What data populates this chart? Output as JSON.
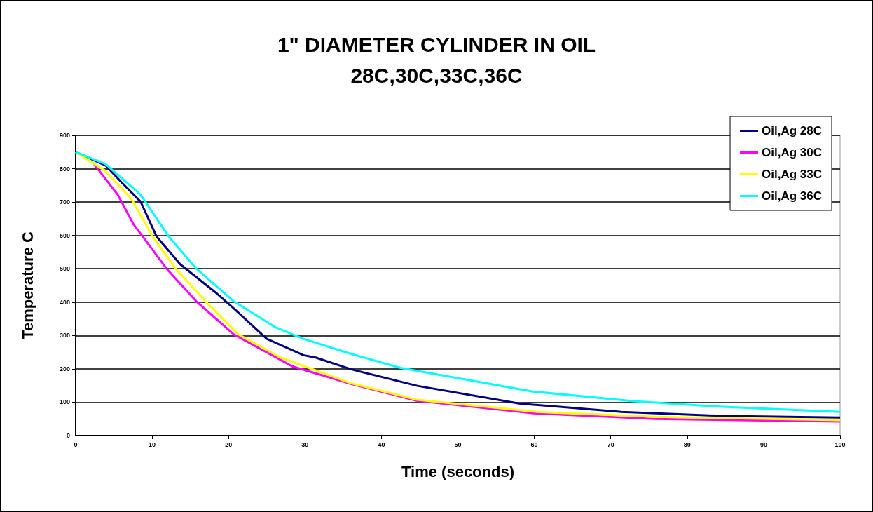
{
  "chart_data": {
    "type": "line",
    "title": "1\" DIAMETER CYLINDER IN OIL",
    "subtitle": "28C,30C,33C,36C",
    "xlabel": "Time (seconds)",
    "ylabel": "Temperature C",
    "xlim": [
      0,
      100
    ],
    "xticks": [
      0,
      10,
      20,
      30,
      40,
      50,
      60,
      70,
      80,
      90,
      100
    ],
    "ylim": [
      0,
      900
    ],
    "yticks": [
      0,
      100,
      200,
      300,
      400,
      500,
      600,
      700,
      800,
      900
    ],
    "grid": "y",
    "legend": "top right",
    "marker": "none",
    "line_style": "solid",
    "series": [
      {
        "name": "Oil,Ag 28C",
        "color": "#000080",
        "x": [
          0,
          3.9,
          5.8,
          8.5,
          10.6,
          13.7,
          18.3,
          20.7,
          25,
          29.8,
          31.4,
          36,
          44.7,
          58,
          71.4,
          84.7,
          100
        ],
        "values": [
          850,
          810,
          764,
          701,
          596,
          513,
          429,
          381,
          290,
          241,
          234,
          199,
          149,
          96,
          71,
          59,
          54
        ]
      },
      {
        "name": "Oil,Ag 30C",
        "color": "#ff00ff",
        "x": [
          2.4,
          5.5,
          7.6,
          8.8,
          11.9,
          15.8,
          20.7,
          28.4,
          36,
          44.7,
          60.3,
          75.8,
          100
        ],
        "values": [
          814,
          722,
          632,
          596,
          500,
          402,
          303,
          207,
          155,
          104,
          66,
          50,
          42
        ]
      },
      {
        "name": "Oil,Ag 33C",
        "color": "#ffff00",
        "x": [
          0,
          3.9,
          7.3,
          10.1,
          13.1,
          17,
          21.3,
          26.8,
          36,
          44.7,
          60.3,
          75.8,
          100
        ],
        "values": [
          850,
          793,
          709,
          596,
          500,
          402,
          303,
          234,
          157,
          107,
          71,
          56,
          46
        ]
      },
      {
        "name": "Oil,Ag 36C",
        "color": "#00ffff",
        "x": [
          0,
          3.9,
          8.5,
          12.2,
          15.8,
          20.7,
          26.2,
          29.8,
          36,
          42.5,
          59.8,
          73,
          84.7,
          100
        ],
        "values": [
          850,
          814,
          722,
          596,
          500,
          402,
          324,
          290,
          245,
          203,
          132,
          103,
          86,
          71
        ]
      }
    ]
  }
}
